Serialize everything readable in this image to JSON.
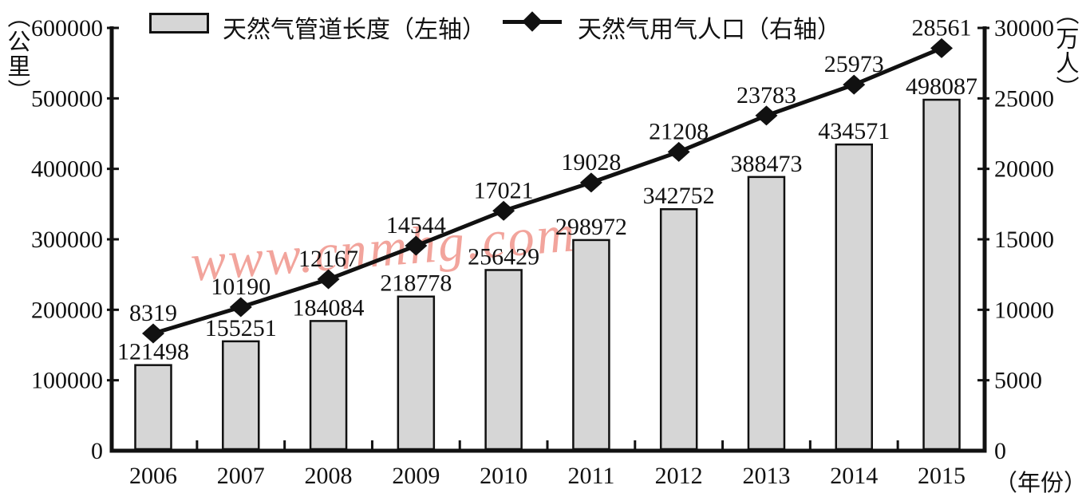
{
  "watermark": {
    "text": "www.cnmhg.com",
    "color": "#f2a49c"
  },
  "colors": {
    "bar_fill": "#d6d6d6",
    "ink": "#111111",
    "watermark": "#f2a49c"
  },
  "chart_data": {
    "type": "bar+line",
    "categories": [
      "2006",
      "2007",
      "2008",
      "2009",
      "2010",
      "2011",
      "2012",
      "2013",
      "2014",
      "2015"
    ],
    "series": [
      {
        "name": "天然气管道长度（左轴）",
        "type": "bar",
        "axis": "left",
        "values": [
          121498,
          155251,
          184084,
          218778,
          256429,
          298972,
          342752,
          388473,
          434571,
          498087
        ]
      },
      {
        "name": "天然气用气人口（右轴）",
        "type": "line",
        "axis": "right",
        "values": [
          8319,
          10190,
          12167,
          14544,
          17021,
          19028,
          21208,
          23783,
          25973,
          28561
        ]
      }
    ],
    "left_axis": {
      "label": "（公里）",
      "min": 0,
      "max": 600000,
      "ticks": [
        0,
        100000,
        200000,
        300000,
        400000,
        500000,
        600000
      ]
    },
    "right_axis": {
      "label": "（万人）",
      "min": 0,
      "max": 30000,
      "ticks": [
        0,
        5000,
        10000,
        15000,
        20000,
        25000,
        30000
      ]
    },
    "x_axis": {
      "label": "（年份）"
    },
    "legend_position": "top",
    "grid": false,
    "data_labels": true
  }
}
